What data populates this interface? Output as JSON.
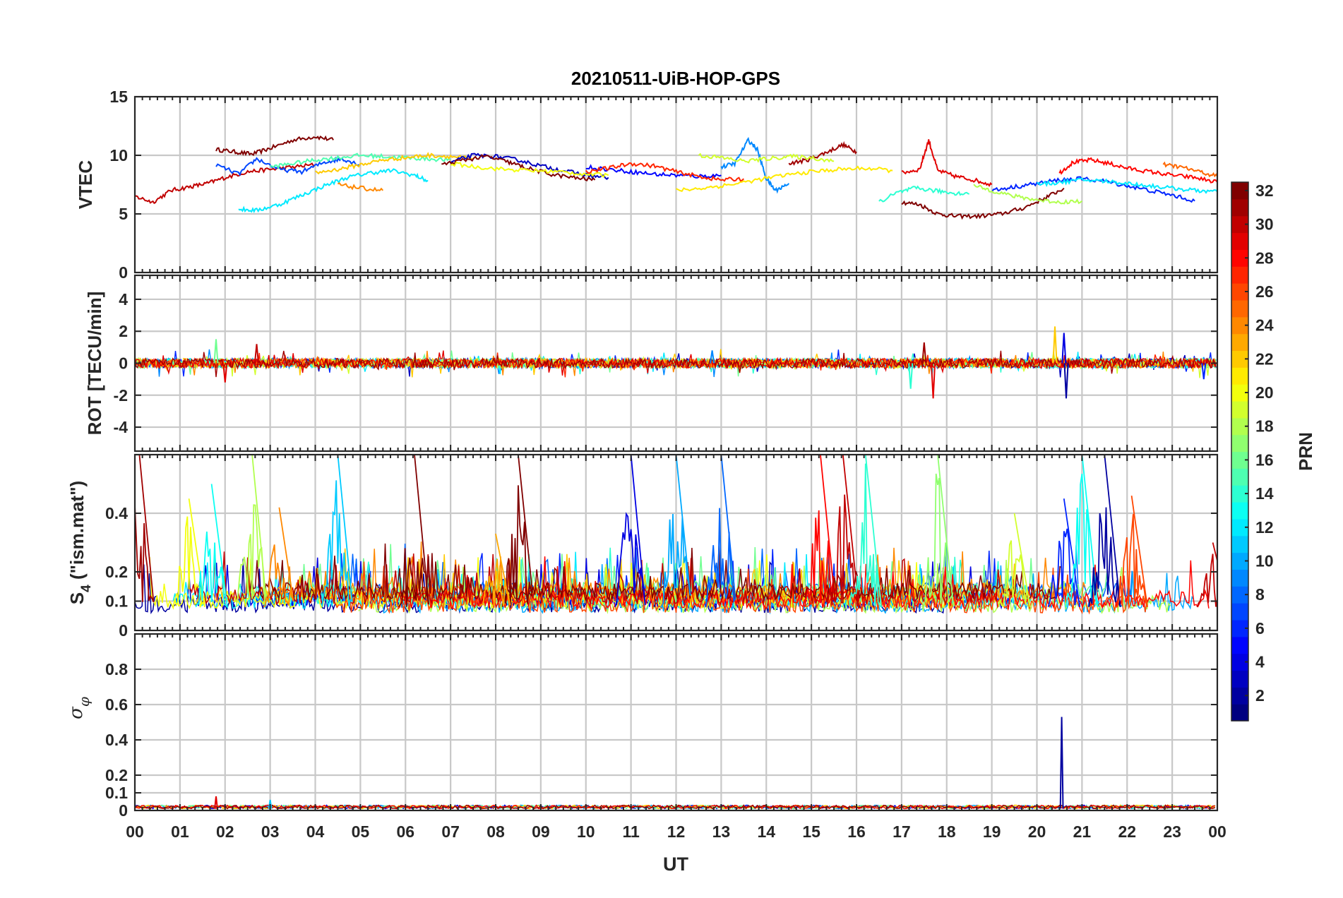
{
  "chart_data": {
    "type": "line",
    "title": "20210511-UiB-HOP-GPS",
    "xlabel": "UT",
    "x_tick_labels": [
      "00",
      "01",
      "02",
      "03",
      "04",
      "05",
      "06",
      "07",
      "08",
      "09",
      "10",
      "11",
      "12",
      "13",
      "14",
      "15",
      "16",
      "17",
      "18",
      "19",
      "20",
      "21",
      "22",
      "23",
      "00"
    ],
    "xlim_hours": [
      0,
      24
    ],
    "grid": true,
    "panels": [
      {
        "id": "vtec",
        "ylabel": "VTEC",
        "ylim": [
          0,
          15
        ],
        "yticks": [
          0,
          5,
          10,
          15
        ],
        "ytick_labels": [
          "0",
          "5",
          "10",
          "15"
        ],
        "series": [
          {
            "prn": 32,
            "x": [
              1.8,
              2.2,
              2.6,
              3.0,
              3.5,
              4.0,
              4.4
            ],
            "y": [
              10.5,
              10.3,
              10.1,
              10.6,
              11.3,
              11.6,
              11.3
            ]
          },
          {
            "prn": 30,
            "x": [
              0.0,
              0.4,
              0.8,
              1.2,
              1.6,
              2.0,
              2.5,
              3.0,
              3.5,
              4.0
            ],
            "y": [
              6.5,
              6.0,
              7.0,
              7.3,
              7.6,
              8.1,
              8.6,
              8.8,
              9.0,
              9.2
            ]
          },
          {
            "prn": 31,
            "x": [
              14.5,
              14.9,
              15.3,
              15.7,
              16.0
            ],
            "y": [
              9.3,
              9.6,
              10.2,
              10.9,
              10.3
            ]
          },
          {
            "prn": 32,
            "x": [
              17.0,
              17.4,
              17.8,
              18.2,
              18.7,
              19.2,
              19.7,
              20.2,
              20.6
            ],
            "y": [
              6.0,
              5.8,
              5.0,
              4.8,
              4.8,
              5.0,
              5.5,
              6.4,
              7.2
            ]
          },
          {
            "prn": 29,
            "x": [
              17.0,
              17.4,
              17.6,
              17.8,
              18.2,
              18.6,
              19.0
            ],
            "y": [
              8.5,
              8.8,
              11.3,
              8.7,
              8.2,
              7.9,
              7.5
            ]
          },
          {
            "prn": 28,
            "x": [
              20.5,
              20.8,
              21.2,
              21.6,
              22.0,
              22.5,
              23.0,
              23.5,
              24.0
            ],
            "y": [
              8.5,
              9.4,
              9.6,
              9.3,
              8.9,
              8.6,
              8.3,
              8.1,
              7.7
            ]
          },
          {
            "prn": 7,
            "x": [
              1.8,
              2.3,
              2.7,
              3.2,
              3.7,
              4.2,
              4.6,
              5.0
            ],
            "y": [
              9.2,
              8.4,
              9.7,
              8.8,
              8.6,
              9.4,
              9.7,
              9.2
            ]
          },
          {
            "prn": 12,
            "x": [
              2.3,
              2.7,
              3.2,
              3.7,
              4.2,
              4.7,
              5.2,
              5.7,
              6.2,
              6.5
            ],
            "y": [
              5.4,
              5.3,
              5.8,
              6.6,
              7.4,
              8.1,
              8.5,
              8.7,
              8.3,
              7.8
            ]
          },
          {
            "prn": 15,
            "x": [
              3.0,
              3.5,
              4.0,
              4.5,
              5.0,
              5.5,
              6.0,
              6.5,
              7.0
            ],
            "y": [
              9.0,
              9.3,
              9.6,
              9.8,
              10.0,
              9.9,
              9.8,
              9.7,
              9.6
            ]
          },
          {
            "prn": 22,
            "x": [
              4.0,
              4.5,
              5.0,
              5.5,
              6.0,
              6.5,
              7.0,
              7.5
            ],
            "y": [
              8.5,
              8.8,
              9.2,
              9.6,
              9.8,
              10.0,
              9.9,
              9.7
            ]
          },
          {
            "prn": 24,
            "x": [
              4.5,
              5.0,
              5.5
            ],
            "y": [
              7.5,
              7.2,
              7.0
            ]
          },
          {
            "prn": 3,
            "x": [
              7.0,
              7.5,
              8.0,
              8.5,
              9.0,
              9.5,
              10.0,
              10.5
            ],
            "y": [
              9.4,
              10.0,
              9.9,
              9.6,
              9.1,
              8.7,
              8.3,
              8.1
            ]
          },
          {
            "prn": 32,
            "x": [
              6.8,
              7.3,
              7.8,
              8.3,
              8.7,
              9.2,
              9.7,
              10.2
            ],
            "y": [
              9.2,
              9.6,
              9.9,
              9.4,
              8.9,
              8.4,
              8.1,
              7.9
            ]
          },
          {
            "prn": 20,
            "x": [
              7.0,
              7.6,
              8.2,
              8.8,
              9.4,
              10.0,
              10.5
            ],
            "y": [
              9.3,
              9.0,
              8.8,
              8.7,
              8.6,
              8.4,
              8.3
            ]
          },
          {
            "prn": 5,
            "x": [
              10.0,
              10.5,
              11.0,
              11.5,
              12.0,
              12.5,
              13.0
            ],
            "y": [
              9.0,
              8.8,
              8.6,
              8.4,
              8.3,
              8.2,
              8.3
            ]
          },
          {
            "prn": 27,
            "x": [
              10.0,
              10.5,
              11.0,
              11.5,
              12.0,
              12.5,
              13.0,
              13.5
            ],
            "y": [
              8.6,
              8.9,
              9.3,
              9.1,
              8.6,
              8.2,
              7.9,
              8.0
            ]
          },
          {
            "prn": 9,
            "x": [
              13.0,
              13.3,
              13.6,
              13.8,
              14.0,
              14.2,
              14.5
            ],
            "y": [
              9.0,
              9.3,
              11.3,
              10.5,
              8.0,
              7.0,
              7.6
            ]
          },
          {
            "prn": 19,
            "x": [
              12.5,
              13.0,
              13.5,
              14.0,
              14.5,
              15.0,
              15.5
            ],
            "y": [
              10.0,
              9.8,
              9.5,
              9.7,
              9.9,
              9.8,
              9.5
            ]
          },
          {
            "prn": 21,
            "x": [
              12.0,
              12.6,
              13.2,
              13.8,
              14.4,
              15.0,
              15.6,
              16.2,
              16.8
            ],
            "y": [
              7.0,
              7.2,
              7.5,
              7.9,
              8.3,
              8.6,
              8.8,
              8.9,
              8.7
            ]
          },
          {
            "prn": 14,
            "x": [
              16.5,
              16.9,
              17.3,
              17.7,
              18.1,
              18.5
            ],
            "y": [
              6.0,
              6.8,
              7.2,
              7.0,
              6.8,
              6.7
            ]
          },
          {
            "prn": 6,
            "x": [
              19.0,
              19.5,
              20.0,
              20.5,
              21.0,
              21.5,
              22.0,
              22.5,
              23.0,
              23.5
            ],
            "y": [
              7.0,
              7.3,
              7.6,
              7.9,
              8.0,
              7.8,
              7.4,
              7.0,
              6.6,
              6.1
            ]
          },
          {
            "prn": 18,
            "x": [
              18.6,
              19.0,
              19.5,
              20.0,
              20.5,
              21.0
            ],
            "y": [
              7.4,
              7.0,
              6.5,
              6.2,
              6.0,
              6.1
            ]
          },
          {
            "prn": 12,
            "x": [
              20.0,
              20.5,
              21.0,
              21.5,
              22.0,
              22.5,
              23.0,
              23.5,
              24.0
            ],
            "y": [
              7.5,
              7.7,
              7.9,
              7.8,
              7.6,
              7.4,
              7.2,
              7.0,
              6.9
            ]
          },
          {
            "prn": 25,
            "x": [
              22.8,
              23.2,
              23.6,
              24.0
            ],
            "y": [
              9.2,
              9.0,
              8.6,
              8.2
            ]
          }
        ]
      },
      {
        "id": "rot",
        "ylabel": "ROT [TECU/min]",
        "ylim": [
          -5.5,
          5.5
        ],
        "yticks": [
          -4,
          -2,
          0,
          2,
          4
        ],
        "ytick_labels": [
          "-4",
          "-2",
          "0",
          "2",
          "4"
        ],
        "spikes": [
          {
            "prn": 16,
            "x": 1.8,
            "y": 1.5
          },
          {
            "prn": 30,
            "x": 2.7,
            "y": 1.2
          },
          {
            "prn": 29,
            "x": 2.0,
            "y": -1.2
          },
          {
            "prn": 31,
            "x": 17.5,
            "y": 1.3
          },
          {
            "prn": 29,
            "x": 17.7,
            "y": -2.2
          },
          {
            "prn": 14,
            "x": 17.2,
            "y": -1.6
          },
          {
            "prn": 22,
            "x": 20.4,
            "y": 2.3
          },
          {
            "prn": 4,
            "x": 20.6,
            "y": 1.9
          },
          {
            "prn": 2,
            "x": 20.65,
            "y": -2.2
          },
          {
            "prn": 9,
            "x": 12.8,
            "y": 0.8
          },
          {
            "prn": 6,
            "x": 23.7,
            "y": -1.0
          }
        ]
      },
      {
        "id": "s4",
        "ylabel": "S4 (\"ism.mat\")",
        "ylim": [
          0,
          0.6
        ],
        "yticks": [
          0,
          0.1,
          0.2,
          0.4
        ],
        "ytick_labels": [
          "0",
          "0.1",
          "0.2",
          "0.4"
        ],
        "peaks": [
          {
            "prn": 31,
            "x": 0.1,
            "y": 0.6
          },
          {
            "prn": 20,
            "x": 1.2,
            "y": 0.45
          },
          {
            "prn": 13,
            "x": 1.7,
            "y": 0.5
          },
          {
            "prn": 18,
            "x": 2.6,
            "y": 0.6
          },
          {
            "prn": 24,
            "x": 3.2,
            "y": 0.42
          },
          {
            "prn": 11,
            "x": 4.5,
            "y": 0.6
          },
          {
            "prn": 32,
            "x": 6.2,
            "y": 0.6
          },
          {
            "prn": 32,
            "x": 8.5,
            "y": 0.6
          },
          {
            "prn": 23,
            "x": 8.0,
            "y": 0.33
          },
          {
            "prn": 4,
            "x": 11.0,
            "y": 0.6
          },
          {
            "prn": 10,
            "x": 12.0,
            "y": 0.6
          },
          {
            "prn": 8,
            "x": 13.0,
            "y": 0.6
          },
          {
            "prn": 28,
            "x": 15.2,
            "y": 0.6
          },
          {
            "prn": 30,
            "x": 15.7,
            "y": 0.6
          },
          {
            "prn": 14,
            "x": 16.2,
            "y": 0.6
          },
          {
            "prn": 17,
            "x": 17.8,
            "y": 0.6
          },
          {
            "prn": 19,
            "x": 19.5,
            "y": 0.4
          },
          {
            "prn": 6,
            "x": 20.6,
            "y": 0.45
          },
          {
            "prn": 13,
            "x": 21.0,
            "y": 0.6
          },
          {
            "prn": 2,
            "x": 21.5,
            "y": 0.6
          },
          {
            "prn": 26,
            "x": 22.1,
            "y": 0.46
          },
          {
            "prn": 30,
            "x": 23.9,
            "y": 0.3
          }
        ]
      },
      {
        "id": "sigma_phi",
        "ylabel": "σφ",
        "ylim": [
          0,
          1
        ],
        "yticks": [
          0,
          0.1,
          0.2,
          0.4,
          0.6,
          0.8
        ],
        "ytick_labels": [
          "0",
          "0.1",
          "0.2",
          "0.4",
          "0.6",
          "0.8"
        ],
        "spikes": [
          {
            "prn": 29,
            "x": 1.8,
            "y": 0.08
          },
          {
            "prn": 11,
            "x": 3.0,
            "y": 0.06
          },
          {
            "prn": 2,
            "x": 20.55,
            "y": 0.53
          }
        ]
      }
    ],
    "colorbar": {
      "label": "PRN",
      "range": [
        1,
        32
      ],
      "tick_labels": [
        "2",
        "4",
        "6",
        "8",
        "10",
        "12",
        "14",
        "16",
        "18",
        "20",
        "22",
        "24",
        "26",
        "28",
        "30",
        "32"
      ],
      "colormap": "jet"
    }
  }
}
